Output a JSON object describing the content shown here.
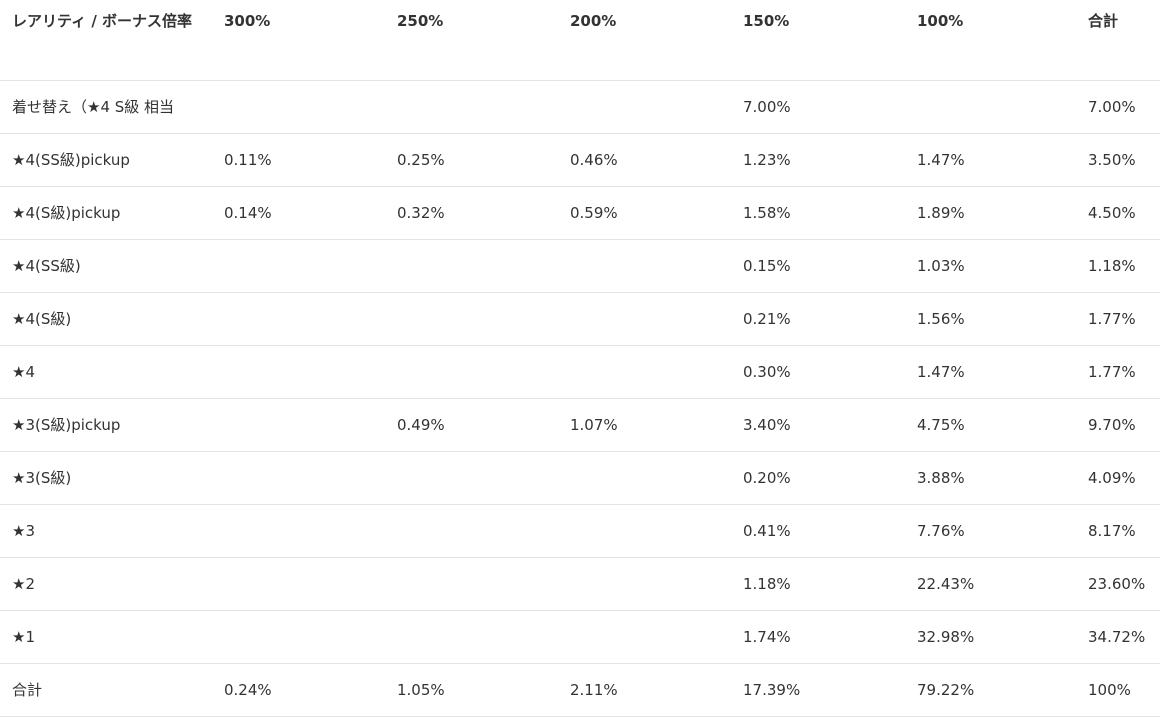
{
  "table": {
    "headers": [
      "レアリティ / ボーナス倍率",
      "300%",
      "250%",
      "200%",
      "150%",
      "100%",
      "合計"
    ],
    "rows": [
      [
        "着せ替え（★4 S級 相当",
        "",
        "",
        "",
        "7.00%",
        "",
        "7.00%"
      ],
      [
        "★4(SS級)pickup",
        "0.11%",
        "0.25%",
        "0.46%",
        "1.23%",
        "1.47%",
        "3.50%"
      ],
      [
        "★4(S級)pickup",
        "0.14%",
        "0.32%",
        "0.59%",
        "1.58%",
        "1.89%",
        "4.50%"
      ],
      [
        "★4(SS級)",
        "",
        "",
        "",
        "0.15%",
        "1.03%",
        "1.18%"
      ],
      [
        "★4(S級)",
        "",
        "",
        "",
        "0.21%",
        "1.56%",
        "1.77%"
      ],
      [
        "★4",
        "",
        "",
        "",
        "0.30%",
        "1.47%",
        "1.77%"
      ],
      [
        "★3(S級)pickup",
        "",
        "0.49%",
        "1.07%",
        "3.40%",
        "4.75%",
        "9.70%"
      ],
      [
        "★3(S級)",
        "",
        "",
        "",
        "0.20%",
        "3.88%",
        "4.09%"
      ],
      [
        "★3",
        "",
        "",
        "",
        "0.41%",
        "7.76%",
        "8.17%"
      ],
      [
        "★2",
        "",
        "",
        "",
        "1.18%",
        "22.43%",
        "23.60%"
      ],
      [
        "★1",
        "",
        "",
        "",
        "1.74%",
        "32.98%",
        "34.72%"
      ],
      [
        "合計",
        "0.24%",
        "1.05%",
        "2.11%",
        "17.39%",
        "79.22%",
        "100%"
      ]
    ]
  }
}
